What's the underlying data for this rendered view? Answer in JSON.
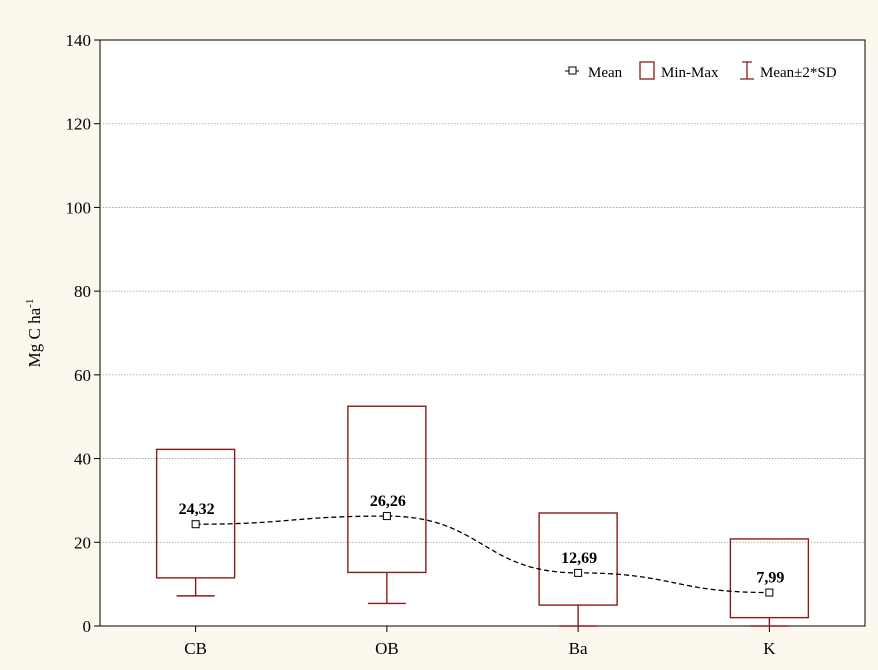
{
  "chart_data": {
    "type": "box",
    "categories": [
      "CB",
      "OB",
      "Ba",
      "K"
    ],
    "mean": [
      24.32,
      26.26,
      12.69,
      7.99
    ],
    "mean_labels": [
      "24,32",
      "26,26",
      "12,69",
      "7,99"
    ],
    "min": [
      11.5,
      12.8,
      5.0,
      2.0
    ],
    "max": [
      42.2,
      52.5,
      27.0,
      20.8
    ],
    "whisker_low": [
      7.2,
      5.4,
      0.0,
      0.0
    ],
    "ylabel": "Mg C ha",
    "ylabel_superscript": "-1",
    "ylim": [
      0,
      140
    ],
    "yticks": [
      0,
      20,
      40,
      60,
      80,
      100,
      120,
      140
    ],
    "ytick_labels": [
      "0",
      "20",
      "40",
      "60",
      "80",
      "100",
      "120",
      "140"
    ],
    "grid": true,
    "legend_position": "top-right",
    "legend": {
      "mean": "Mean",
      "minmax": "Min-Max",
      "sd": "Mean±2*SD"
    },
    "colors": {
      "box": "#8b1a1a",
      "mean_line": "#000000",
      "grid": "#9a9a9a",
      "plot_bg": "#ffffff",
      "page_bg": "#fdf8ee"
    }
  }
}
